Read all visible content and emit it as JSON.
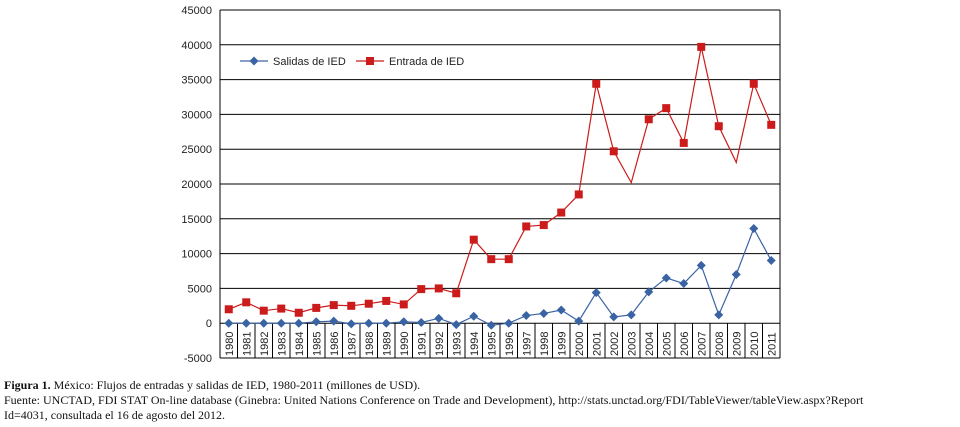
{
  "chart_data": {
    "type": "line",
    "categories": [
      "1980",
      "1981",
      "1982",
      "1983",
      "1984",
      "1985",
      "1986",
      "1987",
      "1988",
      "1989",
      "1990",
      "1991",
      "1992",
      "1993",
      "1994",
      "1995",
      "1996",
      "1997",
      "1998",
      "1999",
      "2000",
      "2001",
      "2002",
      "2003",
      "2004",
      "2005",
      "2006",
      "2007",
      "2008",
      "2009",
      "2010",
      "2011"
    ],
    "yticks": [
      45000,
      40000,
      35000,
      30000,
      25000,
      20000,
      15000,
      10000,
      5000,
      0,
      -5000
    ],
    "ylim": [
      -5000,
      45000
    ],
    "grid": true,
    "legend_position": "top-left",
    "series": [
      {
        "name": "Salidas de IED",
        "color": "#3a63a4",
        "marker": "diamond",
        "values": [
          0,
          0,
          0,
          0,
          0,
          200,
          300,
          -100,
          0,
          0,
          200,
          100,
          700,
          -200,
          1000,
          -300,
          0,
          1100,
          1400,
          1900,
          300,
          4400,
          900,
          1200,
          4500,
          6500,
          5700,
          8300,
          1200,
          7000,
          13600,
          9000
        ],
        "marked": [
          true,
          true,
          true,
          true,
          true,
          true,
          true,
          true,
          true,
          true,
          true,
          true,
          true,
          true,
          true,
          true,
          true,
          true,
          true,
          true,
          true,
          true,
          true,
          true,
          true,
          true,
          true,
          true,
          true,
          true,
          true,
          true
        ]
      },
      {
        "name": "Entrada de IED",
        "color": "#cc1b1b",
        "marker": "square",
        "values": [
          2000,
          3000,
          1800,
          2100,
          1500,
          2200,
          2600,
          2500,
          2800,
          3200,
          2700,
          4900,
          5000,
          4300,
          12000,
          9200,
          9200,
          13900,
          14100,
          15900,
          18500,
          34400,
          24700,
          20200,
          29300,
          30900,
          25900,
          39700,
          28300,
          23100,
          34400,
          28500
        ],
        "marked": [
          true,
          true,
          true,
          true,
          true,
          true,
          true,
          true,
          true,
          true,
          true,
          true,
          true,
          true,
          true,
          true,
          true,
          true,
          true,
          true,
          true,
          true,
          true,
          false,
          true,
          true,
          true,
          true,
          true,
          false,
          true,
          true
        ]
      }
    ]
  },
  "caption": {
    "figure_label": "Figura 1.",
    "figure_text": " México: Flujos de entradas y salidas de IED, 1980-2011 (millones de USD).",
    "source_line1": "Fuente: UNCTAD, FDI STAT On-line database (Ginebra: United Nations Conference on Trade and Development), http://stats.unctad.org/FDI/TableViewer/tableView.aspx?Report",
    "source_line2": "Id=4031, consultada el 16 de agosto del 2012."
  }
}
